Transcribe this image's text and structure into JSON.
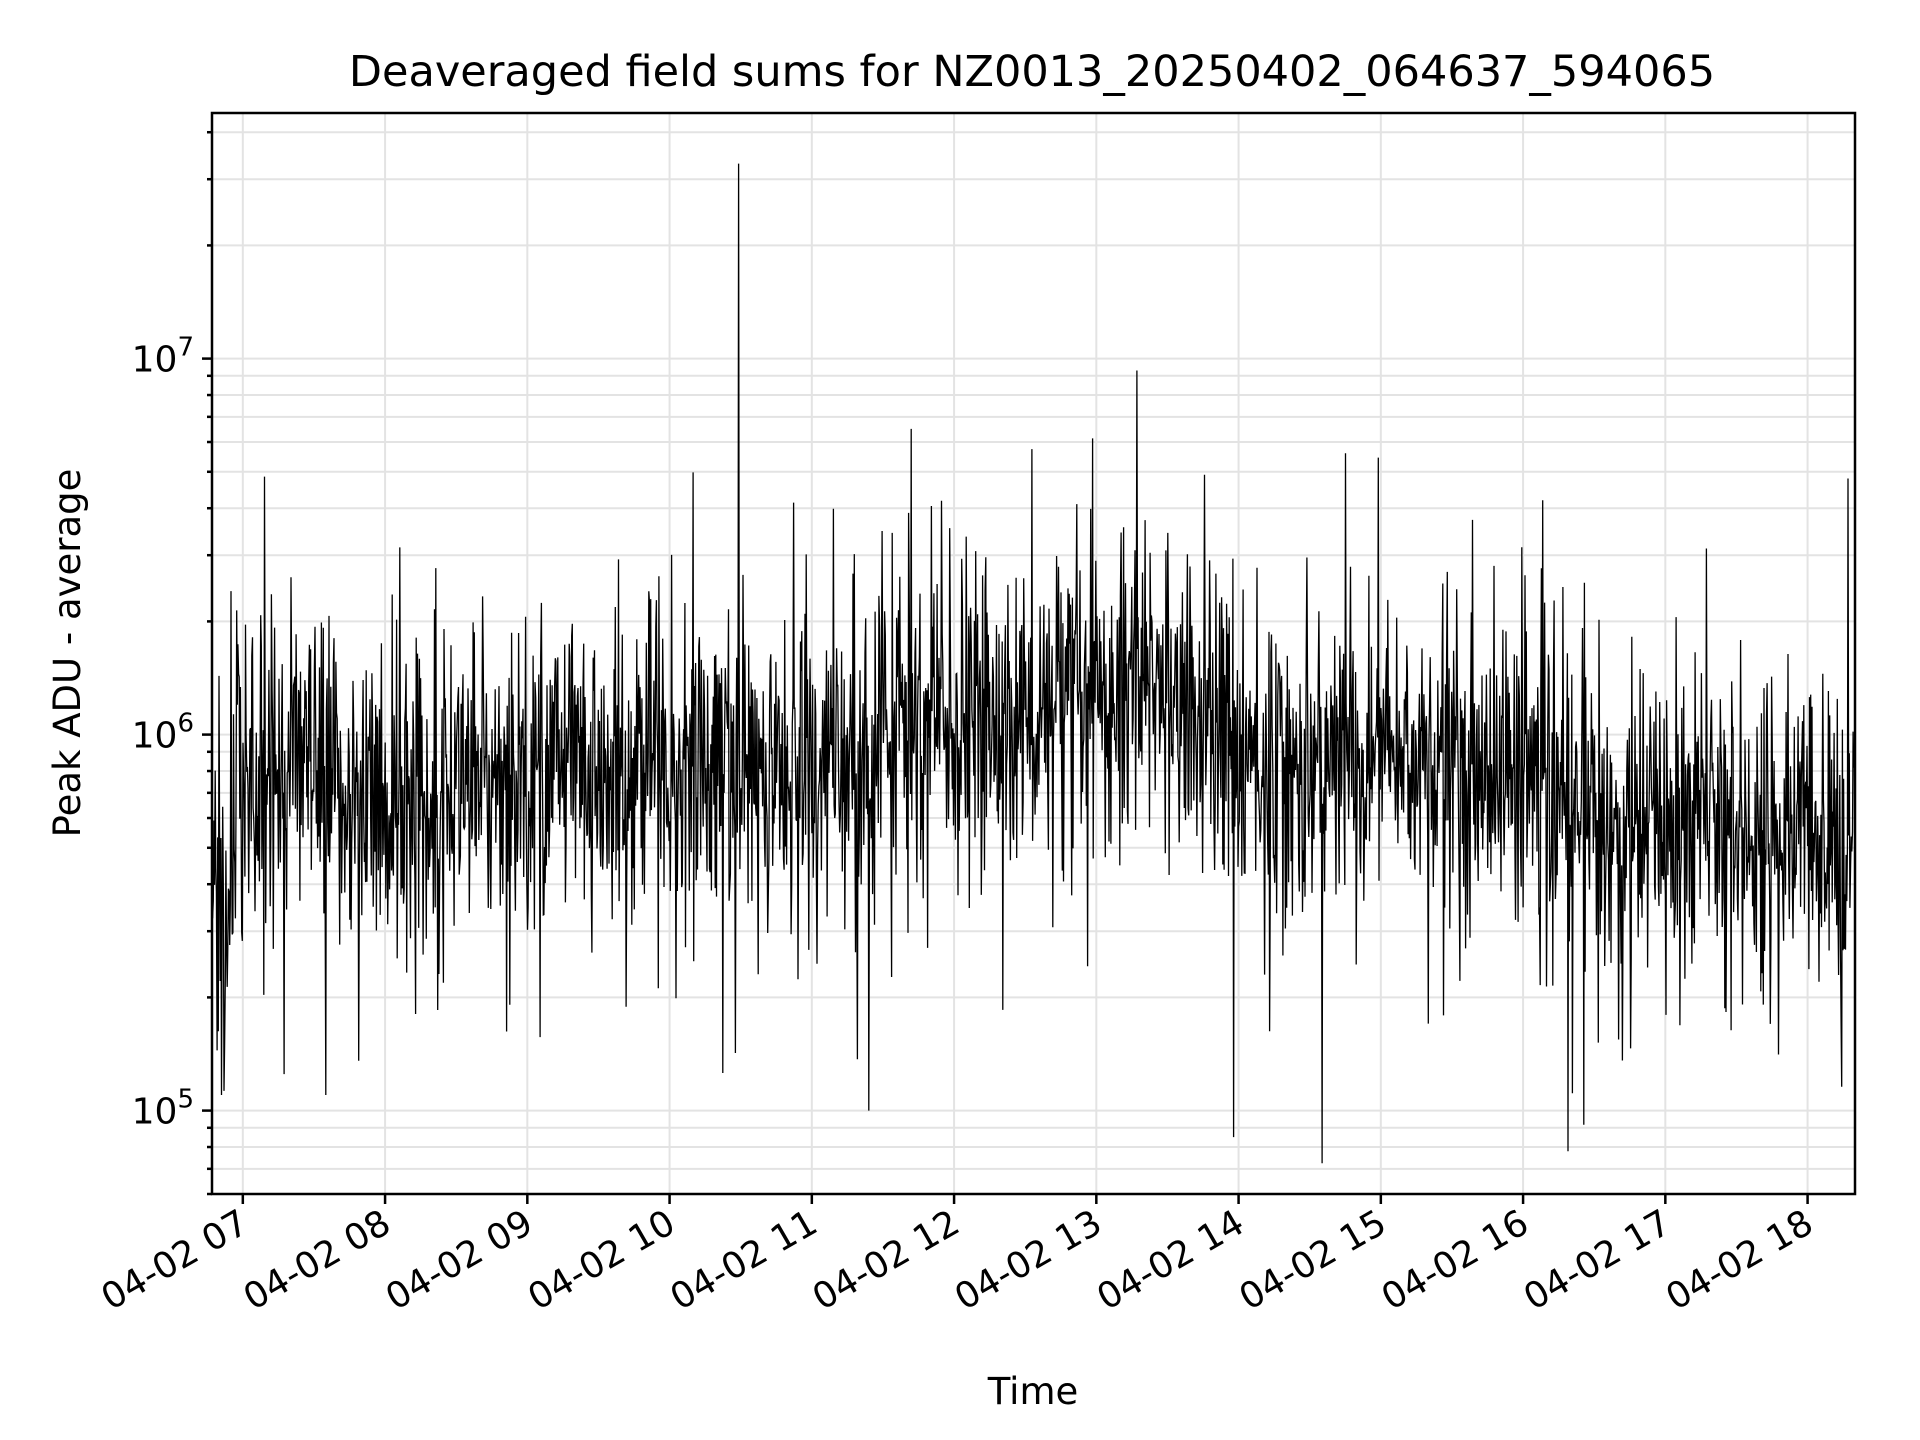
{
  "chart_data": {
    "type": "line",
    "title": "Deaveraged field sums for NZ0013_20250402_064637_594065",
    "xlabel": "Time",
    "ylabel": "Peak ADU - average",
    "y_scale": "log",
    "ylim": [
      60000,
      45000000
    ],
    "xlim": [
      "2025-04-02 06:47",
      "2025-04-02 18:20"
    ],
    "grid": true,
    "color": "#000000",
    "x_tick_labels": [
      "04-02 07",
      "04-02 08",
      "04-02 09",
      "04-02 10",
      "04-02 11",
      "04-02 12",
      "04-02 13",
      "04-02 14",
      "04-02 15",
      "04-02 16",
      "04-02 17",
      "04-02 18"
    ],
    "y_tick_labels": [
      {
        "base": "10",
        "exp": "5",
        "value": 100000
      },
      {
        "base": "10",
        "exp": "6",
        "value": 1000000
      },
      {
        "base": "10",
        "exp": "7",
        "value": 10000000
      }
    ],
    "series": [
      {
        "x": [
          "2025-04-02 06:47",
          "2025-04-02 06:53",
          "2025-04-02 07:00",
          "2025-04-02 07:15",
          "2025-04-02 07:30",
          "2025-04-02 07:45",
          "2025-04-02 08:00",
          "2025-04-02 08:30",
          "2025-04-02 09:00",
          "2025-04-02 09:30",
          "2025-04-02 10:00",
          "2025-04-02 10:30",
          "2025-04-02 11:00",
          "2025-04-02 11:30",
          "2025-04-02 12:00",
          "2025-04-02 12:30",
          "2025-04-02 13:00",
          "2025-04-02 13:15",
          "2025-04-02 13:30",
          "2025-04-02 14:00",
          "2025-04-02 14:30",
          "2025-04-02 15:00",
          "2025-04-02 15:30",
          "2025-04-02 16:00",
          "2025-04-02 16:30",
          "2025-04-02 17:00",
          "2025-04-02 17:30",
          "2025-04-02 18:00",
          "2025-04-02 18:20"
        ],
        "y": [
          450000,
          350000,
          750000,
          800000,
          780000,
          700000,
          650000,
          750000,
          850000,
          800000,
          850000,
          800000,
          800000,
          1000000,
          1050000,
          1100000,
          1100000,
          1500000,
          1300000,
          900000,
          800000,
          900000,
          800000,
          800000,
          550000,
          600000,
          600000,
          550000,
          450000
        ]
      }
    ],
    "extremes": [
      {
        "x": "2025-04-02 06:51",
        "y": 110000
      },
      {
        "x": "2025-04-02 07:35",
        "y": 110000
      },
      {
        "x": "2025-04-02 10:29",
        "y": 33000000
      },
      {
        "x": "2025-04-02 11:24",
        "y": 100000
      },
      {
        "x": "2025-04-02 11:42",
        "y": 6500000
      },
      {
        "x": "2025-04-02 13:17",
        "y": 9300000
      },
      {
        "x": "2025-04-02 13:58",
        "y": 85000
      },
      {
        "x": "2025-04-02 14:45",
        "y": 5600000
      },
      {
        "x": "2025-04-02 16:19",
        "y": 78000
      },
      {
        "x": "2025-04-02 18:17",
        "y": 4800000
      }
    ]
  }
}
